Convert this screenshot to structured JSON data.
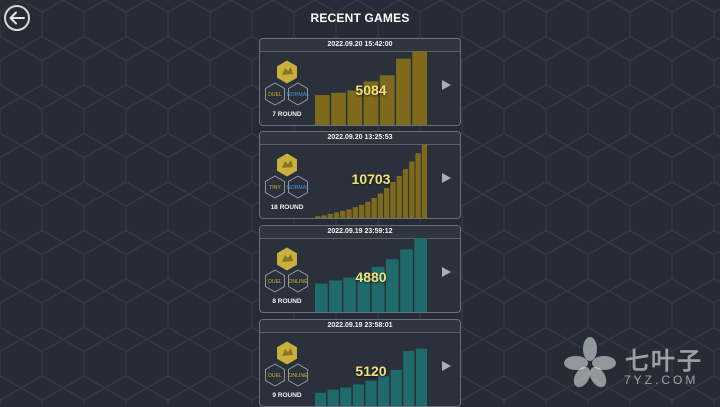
{
  "header": {
    "title": "RECENT GAMES",
    "back_icon": "arrow-left-icon"
  },
  "colors": {
    "gold": "#7e6a1c",
    "teal": "#1f6b6b",
    "gold_badge": "#c9b03c",
    "badge_text_gold": "#c9b03c",
    "badge_text_blue": "#4a90d9",
    "score": "#f2e07a"
  },
  "games": [
    {
      "timestamp": "2022.09.20 15:42:00",
      "mode_label": "DUEL",
      "type_label": "NORMAL",
      "type_color": "blue",
      "rounds_label": "7 ROUND",
      "score": "5084",
      "bar_color": "gold",
      "bar_values": [
        0.42,
        0.45,
        0.48,
        0.6,
        0.68,
        0.9,
        1.0
      ]
    },
    {
      "timestamp": "2022.09.20 13:25:53",
      "mode_label": "TINY",
      "type_label": "NORMAL",
      "type_color": "blue",
      "rounds_label": "18 ROUND",
      "score": "10703",
      "bar_color": "gold",
      "bar_values": [
        0.05,
        0.06,
        0.08,
        0.1,
        0.12,
        0.14,
        0.17,
        0.2,
        0.24,
        0.29,
        0.35,
        0.42,
        0.5,
        0.58,
        0.67,
        0.77,
        0.88,
        1.0
      ]
    },
    {
      "timestamp": "2022.09.19 23:59:12",
      "mode_label": "DUEL",
      "type_label": "ONLINE",
      "type_color": "gold",
      "rounds_label": "8 ROUND",
      "score": "4880",
      "bar_color": "teal",
      "bar_values": [
        0.4,
        0.44,
        0.48,
        0.52,
        0.62,
        0.72,
        0.85,
        1.0
      ]
    },
    {
      "timestamp": "2022.09.19 23:58:01",
      "mode_label": "DUEL",
      "type_label": "ONLINE",
      "type_color": "gold",
      "rounds_label": "9 ROUND",
      "score": "5120",
      "bar_color": "teal",
      "bar_values": [
        0.2,
        0.24,
        0.27,
        0.31,
        0.36,
        0.42,
        0.5,
        0.75,
        0.78
      ]
    }
  ],
  "play_icon": "play-triangle-icon",
  "watermark": {
    "chinese": "七叶子",
    "latin": "7YZ.COM",
    "icon": "leaf-logo-icon"
  }
}
